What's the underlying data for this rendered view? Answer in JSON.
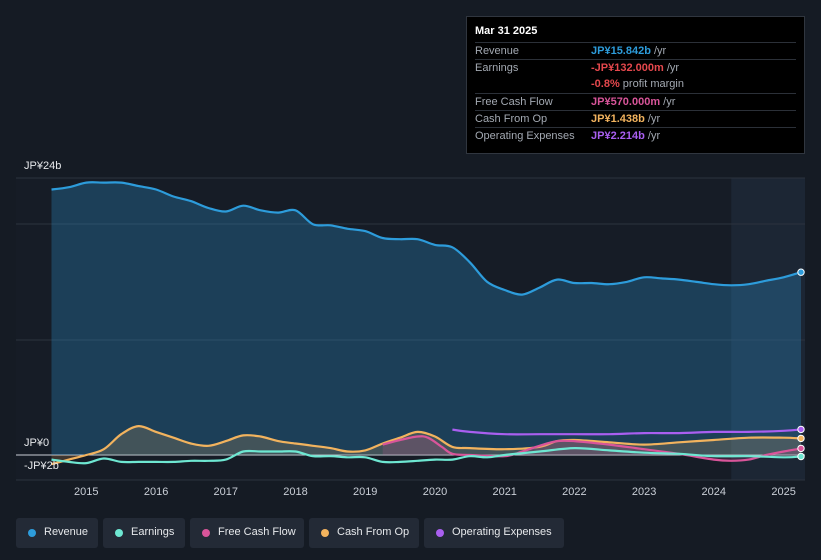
{
  "tooltip": {
    "date": "Mar 31 2025",
    "rows": [
      {
        "label": "Revenue",
        "value": "JP¥15.842b",
        "unit": " /yr",
        "color": "#2d9cdb"
      },
      {
        "label": "Earnings",
        "value": "-JP¥132.000m",
        "unit": " /yr",
        "color": "#e5484d"
      },
      {
        "label": "",
        "value": "-0.8%",
        "unit": " profit margin",
        "color": "#e5484d"
      },
      {
        "label": "Free Cash Flow",
        "value": "JP¥570.000m",
        "unit": " /yr",
        "color": "#d9559a"
      },
      {
        "label": "Cash From Op",
        "value": "JP¥1.438b",
        "unit": " /yr",
        "color": "#f2b35e"
      },
      {
        "label": "Operating Expenses",
        "value": "JP¥2.214b",
        "unit": " /yr",
        "color": "#a95ff0"
      }
    ]
  },
  "legend": [
    {
      "label": "Revenue",
      "color": "#2d9cdb"
    },
    {
      "label": "Earnings",
      "color": "#6ee7d2"
    },
    {
      "label": "Free Cash Flow",
      "color": "#d9559a"
    },
    {
      "label": "Cash From Op",
      "color": "#f2b35e"
    },
    {
      "label": "Operating Expenses",
      "color": "#a95ff0"
    }
  ],
  "chart_data": {
    "type": "area",
    "title": "",
    "y_unit": "JP¥ billions",
    "ylim": [
      -2,
      24
    ],
    "y_tick_labels": [
      {
        "value": 24,
        "label": "JP¥24b"
      },
      {
        "value": 0,
        "label": "JP¥0"
      },
      {
        "value": -2,
        "label": "-JP¥2b"
      }
    ],
    "xlim": [
      2014.45,
      2025.25
    ],
    "x_ticks": [
      2015,
      2016,
      2017,
      2018,
      2019,
      2020,
      2021,
      2022,
      2023,
      2024,
      2025
    ],
    "x_tick_labels": [
      "2015",
      "2016",
      "2017",
      "2018",
      "2019",
      "2020",
      "2021",
      "2022",
      "2023",
      "2024",
      "2025"
    ],
    "highlight_from": 2024.25,
    "series": [
      {
        "name": "Revenue",
        "color": "#2d9cdb",
        "fill": true,
        "x": [
          2014.5,
          2014.75,
          2015.0,
          2015.25,
          2015.5,
          2015.75,
          2016.0,
          2016.25,
          2016.5,
          2016.75,
          2017.0,
          2017.25,
          2017.5,
          2017.75,
          2018.0,
          2018.25,
          2018.5,
          2018.75,
          2019.0,
          2019.25,
          2019.5,
          2019.75,
          2020.0,
          2020.25,
          2020.5,
          2020.75,
          2021.0,
          2021.25,
          2021.5,
          2021.75,
          2022.0,
          2022.25,
          2022.5,
          2022.75,
          2023.0,
          2023.25,
          2023.5,
          2023.75,
          2024.0,
          2024.25,
          2024.5,
          2024.75,
          2025.0,
          2025.25
        ],
        "values": [
          23.0,
          23.2,
          23.6,
          23.6,
          23.6,
          23.3,
          23.0,
          22.4,
          22.0,
          21.4,
          21.1,
          21.6,
          21.2,
          21.0,
          21.2,
          20.0,
          19.9,
          19.6,
          19.4,
          18.8,
          18.7,
          18.7,
          18.2,
          18.0,
          16.7,
          15.0,
          14.3,
          13.9,
          14.5,
          15.2,
          14.9,
          14.9,
          14.8,
          15.0,
          15.4,
          15.3,
          15.2,
          15.0,
          14.8,
          14.7,
          14.8,
          15.1,
          15.4,
          15.842
        ]
      },
      {
        "name": "Earnings",
        "color": "#6ee7d2",
        "fill": false,
        "x": [
          2014.5,
          2014.75,
          2015.0,
          2015.25,
          2015.5,
          2015.75,
          2016.0,
          2016.25,
          2016.5,
          2016.75,
          2017.0,
          2017.25,
          2017.5,
          2017.75,
          2018.0,
          2018.25,
          2018.5,
          2018.75,
          2019.0,
          2019.25,
          2019.5,
          2019.75,
          2020.0,
          2020.25,
          2020.5,
          2020.75,
          2021.0,
          2021.5,
          2022.0,
          2022.5,
          2023.0,
          2023.5,
          2024.0,
          2024.5,
          2025.0,
          2025.25
        ],
        "values": [
          -0.4,
          -0.6,
          -0.7,
          -0.3,
          -0.6,
          -0.6,
          -0.6,
          -0.6,
          -0.5,
          -0.5,
          -0.4,
          0.3,
          0.3,
          0.3,
          0.3,
          -0.1,
          -0.1,
          -0.2,
          -0.2,
          -0.6,
          -0.6,
          -0.5,
          -0.4,
          -0.4,
          -0.1,
          -0.2,
          0.0,
          0.3,
          0.6,
          0.4,
          0.2,
          0.1,
          -0.1,
          -0.1,
          -0.2,
          -0.132
        ]
      },
      {
        "name": "Free Cash Flow",
        "color": "#d9559a",
        "fill": true,
        "x": [
          2019.25,
          2019.5,
          2019.75,
          2019.9,
          2020.1,
          2020.25,
          2020.5,
          2021.0,
          2021.25,
          2021.5,
          2021.75,
          2022.0,
          2022.5,
          2023.0,
          2023.5,
          2024.0,
          2024.25,
          2024.5,
          2024.75,
          2025.0,
          2025.25
        ],
        "values": [
          0.9,
          1.3,
          1.6,
          1.5,
          0.7,
          0.1,
          0.0,
          -0.1,
          0.3,
          0.8,
          1.2,
          1.2,
          0.9,
          0.5,
          0.1,
          -0.4,
          -0.5,
          -0.4,
          0.0,
          0.3,
          0.57
        ]
      },
      {
        "name": "Cash From Op",
        "color": "#f2b35e",
        "fill": true,
        "x": [
          2014.5,
          2014.75,
          2015.0,
          2015.25,
          2015.5,
          2015.75,
          2016.0,
          2016.25,
          2016.5,
          2016.75,
          2017.0,
          2017.25,
          2017.5,
          2017.75,
          2018.0,
          2018.25,
          2018.5,
          2018.75,
          2019.0,
          2019.25,
          2019.5,
          2019.75,
          2020.0,
          2020.25,
          2020.5,
          2021.0,
          2021.5,
          2021.75,
          2022.0,
          2022.5,
          2023.0,
          2023.5,
          2024.0,
          2024.5,
          2025.0,
          2025.25
        ],
        "values": [
          -0.8,
          -0.4,
          0.0,
          0.5,
          1.8,
          2.5,
          2.0,
          1.5,
          1.0,
          0.8,
          1.2,
          1.7,
          1.6,
          1.2,
          1.0,
          0.8,
          0.6,
          0.3,
          0.4,
          1.0,
          1.5,
          2.0,
          1.6,
          0.7,
          0.6,
          0.5,
          0.7,
          1.2,
          1.3,
          1.1,
          0.9,
          1.1,
          1.3,
          1.5,
          1.5,
          1.438
        ]
      },
      {
        "name": "Operating Expenses",
        "color": "#a95ff0",
        "fill": false,
        "x": [
          2020.25,
          2020.5,
          2021.0,
          2021.5,
          2022.0,
          2022.5,
          2023.0,
          2023.5,
          2024.0,
          2024.5,
          2025.0,
          2025.25
        ],
        "values": [
          2.2,
          2.0,
          1.8,
          1.8,
          1.8,
          1.8,
          1.9,
          1.9,
          2.0,
          2.0,
          2.1,
          2.214
        ]
      }
    ]
  }
}
